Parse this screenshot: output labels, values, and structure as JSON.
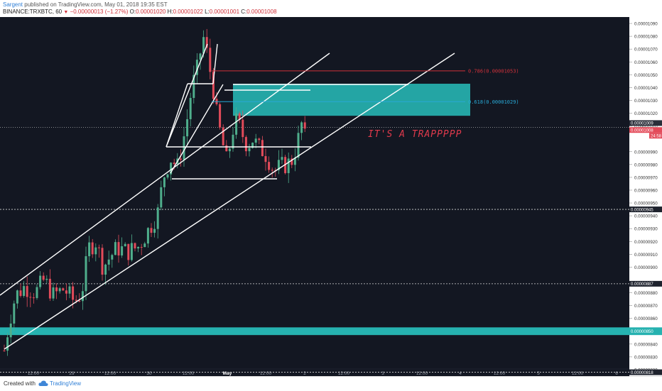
{
  "header": {
    "author": "Sargent",
    "published_text": "published on TradingView.com, May 01, 2018 19:35 EST",
    "symbol": "BINANCE:TRXBTC, 60",
    "change": "−0.00000013 (−1.27%)",
    "o_label": "O:",
    "o_value": "0.00001020",
    "h_label": "H:",
    "h_value": "0.00001022",
    "l_label": "L:",
    "l_value": "0.00001001",
    "c_label": "C:",
    "c_value": "0.00001008",
    "down_triangle": "▼"
  },
  "footer": {
    "created_with": "Created with",
    "brand": "TradingView",
    "logo_icon": "cloud-icon"
  },
  "annotation": {
    "text": "IT'S A TRAPPPPP",
    "color": "#e03a4c"
  },
  "fib_levels": [
    {
      "label": "0.786(0.00001053)",
      "value": 1.053e-05,
      "color": "#d0313a"
    },
    {
      "label": "0.618(0.00001029)",
      "value": 1.029e-05,
      "color": "#28a9d6"
    }
  ],
  "price_labels": {
    "badge_1009": "0.00001009",
    "badge_1008": "0.00001008",
    "countdown": "24:58",
    "hline_945": "0.00000945",
    "hline_887": "0.00000887",
    "hline_850": "0.00000850",
    "hline_818": "0.00000818"
  },
  "colors": {
    "background": "#131722",
    "up": "#4fae8c",
    "down": "#e34b5a",
    "channel": "#ffffff",
    "zone": "#26b2b0"
  },
  "chart_data": {
    "type": "candlestick",
    "symbol": "BINANCE:TRXBTC",
    "timeframe": "60",
    "x_ticks": [
      "12:00",
      "29",
      "12:00",
      "30",
      "12:00",
      "May",
      "12:00",
      "2",
      "12:00",
      "3",
      "12:00",
      "4",
      "12:00",
      "5",
      "12:00",
      "6"
    ],
    "y_ticks": [
      "0.00001090",
      "0.00001080",
      "0.00001070",
      "0.00001060",
      "0.00001050",
      "0.00001040",
      "0.00001030",
      "0.00001020",
      "0.00001010",
      "0.00000990",
      "0.00000980",
      "0.00000970",
      "0.00000960",
      "0.00000950",
      "0.00000940",
      "0.00000930",
      "0.00000920",
      "0.00000910",
      "0.00000900",
      "0.00000880",
      "0.00000870",
      "0.00000860",
      "0.00000840",
      "0.00000830",
      "0.00000820"
    ],
    "ylim": [
      8.15e-06,
      1.095e-05
    ],
    "last_close": 1.008e-05,
    "horizontal_levels": [
      9.45e-06,
      8.87e-06,
      8.18e-06
    ],
    "demand_zone": [
      8.47e-06,
      8.53e-06
    ],
    "supply_zone": [
      1.018e-05,
      1.043e-05
    ]
  }
}
